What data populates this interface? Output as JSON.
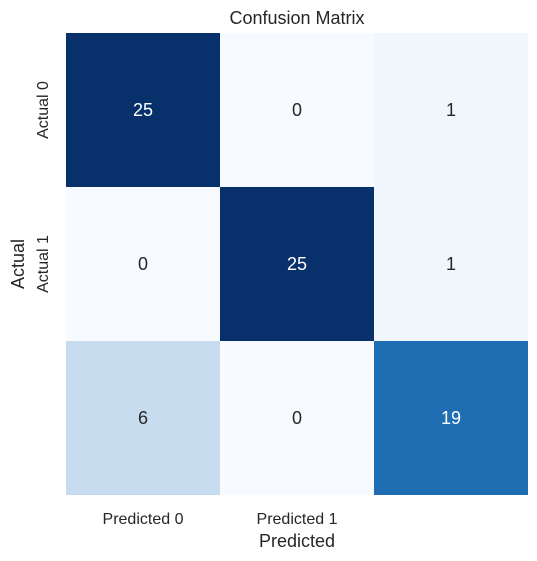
{
  "chart_data": {
    "type": "heatmap",
    "title": "Confusion Matrix",
    "xlabel": "Predicted",
    "ylabel": "Actual",
    "x_tick_labels": [
      "Predicted 0",
      "Predicted 1",
      ""
    ],
    "y_tick_labels": [
      "Actual 0",
      "Actual 1",
      ""
    ],
    "matrix": [
      [
        25,
        0,
        1
      ],
      [
        0,
        25,
        1
      ],
      [
        6,
        0,
        19
      ]
    ],
    "value_range": [
      0,
      25
    ],
    "colormap": "Blues",
    "colorbar": false,
    "grid": false,
    "colors": {
      "min": "#f7fbff",
      "max": "#08306b",
      "text_dark": "#262626",
      "text_light": "#ffffff"
    }
  }
}
